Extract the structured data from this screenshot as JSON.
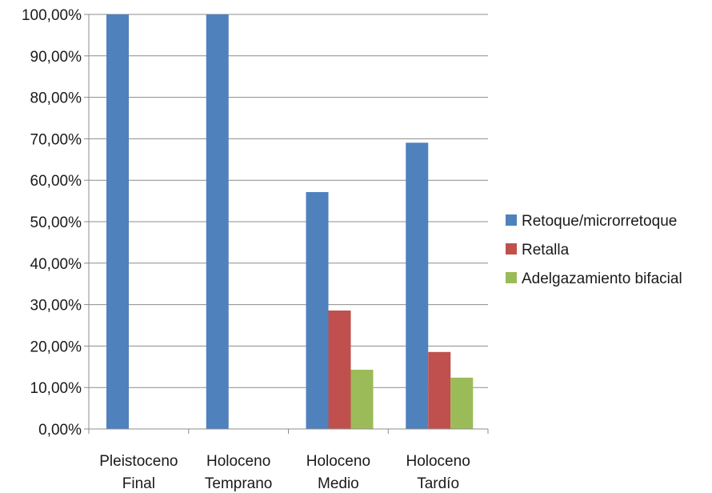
{
  "chart_data": {
    "type": "bar",
    "title": "",
    "xlabel": "",
    "ylabel": "",
    "categories": [
      [
        "Pleistoceno",
        "Final"
      ],
      [
        "Holoceno",
        "Temprano"
      ],
      [
        "Holoceno",
        "Medio"
      ],
      [
        "Holoceno",
        "Tardío"
      ]
    ],
    "series": [
      {
        "name": "Retoque/microrretoque",
        "color": "#4f81bd",
        "values": [
          100,
          100,
          57.14,
          69.05
        ]
      },
      {
        "name": "Retalla",
        "color": "#c0504d",
        "values": [
          0,
          0,
          28.57,
          18.57
        ]
      },
      {
        "name": "Adelgazamiento bifacial",
        "color": "#9bbb59",
        "values": [
          0,
          0,
          14.29,
          12.38
        ]
      }
    ],
    "ylim": [
      0,
      100
    ],
    "yticks": [
      "0,00%",
      "10,00%",
      "20,00%",
      "30,00%",
      "40,00%",
      "50,00%",
      "60,00%",
      "70,00%",
      "80,00%",
      "90,00%",
      "100,00%"
    ],
    "grid": true,
    "legend_position": "right"
  }
}
